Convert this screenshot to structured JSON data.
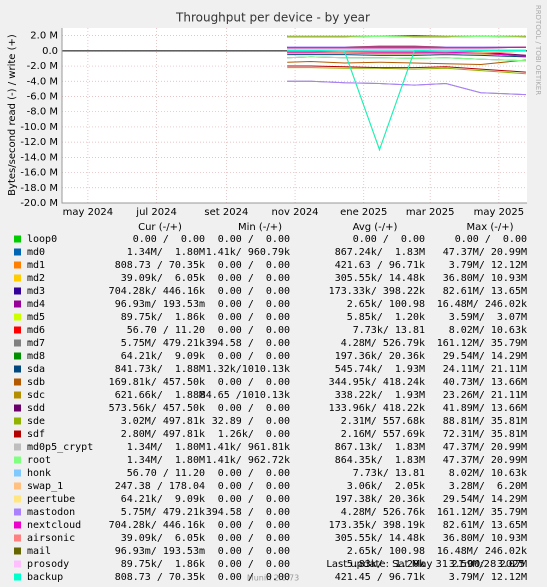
{
  "chart_data": {
    "type": "line",
    "title": "Throughput per device - by year",
    "y_label": "Bytes/second read (-) / write (+)",
    "side_note": "RRDTOOL / TOBI OETIKER",
    "footer": "Last update: Sat May 31 21:00:28 2025",
    "version": "Munin 2.0.73",
    "columns": [
      "Cur (-/+)",
      "Min (-/+)",
      "Avg (-/+)",
      "Max (-/+)"
    ],
    "ylim": [
      -20000000,
      3000000
    ],
    "yticks": [
      {
        "value": 2000000,
        "label": "2.0 M"
      },
      {
        "value": 0,
        "label": "0.0"
      },
      {
        "value": -2000000,
        "label": "-2.0 M"
      },
      {
        "value": -4000000,
        "label": "-4.0 M"
      },
      {
        "value": -6000000,
        "label": "-6.0 M"
      },
      {
        "value": -8000000,
        "label": "-8.0 M"
      },
      {
        "value": -10000000,
        "label": "-10.0 M"
      },
      {
        "value": -12000000,
        "label": "-12.0 M"
      },
      {
        "value": -14000000,
        "label": "-14.0 M"
      },
      {
        "value": -16000000,
        "label": "-16.0 M"
      },
      {
        "value": -18000000,
        "label": "-18.0 M"
      },
      {
        "value": -20000000,
        "label": "-20.0 M"
      }
    ],
    "xlim": [
      "2024-04-08",
      "2025-05-26"
    ],
    "xticks": [
      {
        "value": "2024-05-01",
        "label": "may 2024"
      },
      {
        "value": "2024-07-01",
        "label": "jul 2024"
      },
      {
        "value": "2024-09-01",
        "label": "set 2024"
      },
      {
        "value": "2024-11-01",
        "label": "nov 2024"
      },
      {
        "value": "2025-01-01",
        "label": "ene 2025"
      },
      {
        "value": "2025-03-01",
        "label": "mar 2025"
      },
      {
        "value": "2025-05-01",
        "label": "may 2025"
      }
    ],
    "grid": true,
    "x": [
      "2024-10-25",
      "2024-11-15",
      "2024-12-15",
      "2025-01-15",
      "2025-02-15",
      "2025-03-15",
      "2025-04-15",
      "2025-05-25"
    ],
    "series": [
      {
        "name": "loop0",
        "color": "#00cc00",
        "cur": "0.00 /  0.00",
        "min": "0.00 /  0.00",
        "avg": "0.00 /  0.00",
        "max": "0.00 /  0.00",
        "values": [
          0,
          0,
          0,
          0,
          0,
          0,
          0,
          0
        ],
        "read": [
          0,
          0,
          0,
          0,
          0,
          0,
          0,
          0
        ]
      },
      {
        "name": "md0",
        "color": "#0066b3",
        "cur": "1.34M/  1.80M",
        "min": "1.41k/ 960.79k",
        "avg": "867.24k/  1.83M",
        "max": "47.37M/ 20.99M",
        "values": [
          1800000,
          1800000,
          1800000,
          1900000,
          1800000,
          1800000,
          1900000,
          1800000
        ],
        "read": [
          -900000,
          -800000,
          -900000,
          -900000,
          -1000000,
          -900000,
          -1100000,
          -1300000
        ]
      },
      {
        "name": "md1",
        "color": "#ff8000",
        "cur": "808.73 / 70.35k",
        "min": "0.00 /  0.00",
        "avg": "421.63 / 96.71k",
        "max": "3.79M/ 12.12M",
        "values": [
          100000,
          100000,
          100000,
          100000,
          100000,
          100000,
          100000,
          70000
        ],
        "read": [
          0,
          0,
          -100000,
          -13000000,
          0,
          -100000,
          0,
          0
        ]
      },
      {
        "name": "md2",
        "color": "#ffcc00",
        "cur": "39.09k/  6.05k",
        "min": "0.00 /  0.00",
        "avg": "305.55k/ 14.48k",
        "max": "36.80M/ 10.93M",
        "values": [
          0,
          0,
          0,
          0,
          0,
          0,
          0,
          0
        ],
        "read": [
          -300000,
          -300000,
          -200000,
          -300000,
          -300000,
          -400000,
          -300000,
          -40000
        ]
      },
      {
        "name": "md3",
        "color": "#330099",
        "cur": "704.28k/ 446.16k",
        "min": "0.00 /  0.00",
        "avg": "173.33k/ 398.22k",
        "max": "82.61M/ 13.65M",
        "values": [
          400000,
          400000,
          400000,
          400000,
          400000,
          400000,
          400000,
          450000
        ],
        "read": [
          -200000,
          -200000,
          -100000,
          -200000,
          -200000,
          -200000,
          -300000,
          -700000
        ]
      },
      {
        "name": "md4",
        "color": "#990099",
        "cur": "96.93m/ 193.53m",
        "min": "0.00 /  0.00",
        "avg": "2.65k/ 100.98",
        "max": "16.48M/ 246.02k",
        "values": [
          0,
          0,
          0,
          0,
          0,
          0,
          0,
          0
        ],
        "read": [
          0,
          0,
          0,
          0,
          0,
          0,
          0,
          0
        ]
      },
      {
        "name": "md5",
        "color": "#ccff00",
        "cur": "89.75k/  1.86k",
        "min": "0.00 /  0.00",
        "avg": "5.85k/  1.20k",
        "max": "3.59M/  3.07M",
        "values": [
          0,
          0,
          0,
          0,
          0,
          0,
          0,
          0
        ],
        "read": [
          0,
          0,
          0,
          0,
          0,
          0,
          0,
          -90000
        ]
      },
      {
        "name": "md6",
        "color": "#ff0000",
        "cur": "56.70 / 11.20",
        "min": "0.00 /  0.00",
        "avg": "7.73k/ 13.81",
        "max": "8.02M/ 10.63k",
        "values": [
          0,
          0,
          0,
          0,
          0,
          0,
          0,
          0
        ],
        "read": [
          0,
          0,
          0,
          0,
          0,
          0,
          0,
          0
        ]
      },
      {
        "name": "md7",
        "color": "#808080",
        "cur": "5.75M/ 479.21k",
        "min": "394.58 /  0.00",
        "avg": "4.28M/ 526.79k",
        "max": "161.12M/ 35.79M",
        "values": [
          500000,
          500000,
          500000,
          500000,
          500000,
          500000,
          500000,
          480000
        ],
        "read": [
          -4000000,
          -4000000,
          -4200000,
          -4300000,
          -4500000,
          -4300000,
          -5500000,
          -5750000
        ]
      },
      {
        "name": "md8",
        "color": "#008f00",
        "cur": "64.21k/  9.09k",
        "min": "0.00 /  0.00",
        "avg": "197.36k/ 20.36k",
        "max": "29.54M/ 14.29M",
        "values": [
          0,
          0,
          0,
          0,
          0,
          0,
          0,
          0
        ],
        "read": [
          -200000,
          -200000,
          -200000,
          -200000,
          -200000,
          -200000,
          -200000,
          -60000
        ]
      },
      {
        "name": "sda",
        "color": "#00487d",
        "cur": "841.73k/  1.88M",
        "min": "1.32k/1010.13k",
        "avg": "545.74k/  1.93M",
        "max": "24.11M/ 21.11M",
        "values": [
          1900000,
          1900000,
          1900000,
          1900000,
          2000000,
          1900000,
          1900000,
          1900000
        ],
        "read": [
          -500000,
          -500000,
          -500000,
          -600000,
          -600000,
          -500000,
          -600000,
          -800000
        ]
      },
      {
        "name": "sdb",
        "color": "#b35a00",
        "cur": "169.81k/ 457.50k",
        "min": "0.00 /  0.00",
        "avg": "344.95k/ 418.24k",
        "max": "40.73M/ 13.66M",
        "values": [
          400000,
          400000,
          400000,
          400000,
          400000,
          400000,
          400000,
          460000
        ],
        "read": [
          -1500000,
          -1400000,
          -1600000,
          -1500000,
          -1600000,
          -1700000,
          -1800000,
          -1200000
        ]
      },
      {
        "name": "sdc",
        "color": "#b38f00",
        "cur": "621.66k/  1.88M",
        "min": "84.65 /1010.13k",
        "avg": "338.22k/  1.93M",
        "max": "23.26M/ 21.11M",
        "values": [
          1900000,
          1900000,
          1900000,
          1900000,
          1900000,
          1900000,
          1900000,
          1900000
        ],
        "read": [
          -300000,
          -300000,
          -300000,
          -400000,
          -400000,
          -300000,
          -400000,
          -600000
        ]
      },
      {
        "name": "sdd",
        "color": "#6b006b",
        "cur": "573.56k/ 457.50k",
        "min": "0.00 /  0.00",
        "avg": "133.96k/ 418.22k",
        "max": "41.89M/ 13.66M",
        "values": [
          400000,
          400000,
          400000,
          400000,
          400000,
          400000,
          400000,
          460000
        ],
        "read": [
          -100000,
          -100000,
          -100000,
          -200000,
          -200000,
          -100000,
          -200000,
          -570000
        ]
      },
      {
        "name": "sde",
        "color": "#8fb300",
        "cur": "3.02M/ 497.81k",
        "min": "32.89 /  0.00",
        "avg": "2.31M/ 557.68k",
        "max": "88.81M/ 35.81M",
        "values": [
          500000,
          500000,
          500000,
          600000,
          600000,
          500000,
          500000,
          500000
        ],
        "read": [
          -2200000,
          -2200000,
          -2300000,
          -2300000,
          -2400000,
          -2300000,
          -2600000,
          -3000000
        ]
      },
      {
        "name": "sdf",
        "color": "#b30000",
        "cur": "2.80M/ 497.81k",
        "min": "1.26k/  0.00",
        "avg": "2.16M/ 557.69k",
        "max": "72.31M/ 35.81M",
        "values": [
          500000,
          500000,
          500000,
          600000,
          600000,
          500000,
          500000,
          500000
        ],
        "read": [
          -2000000,
          -2000000,
          -2100000,
          -2200000,
          -2200000,
          -2100000,
          -2400000,
          -2800000
        ]
      },
      {
        "name": "md0p5_crypt",
        "color": "#bebebe",
        "cur": "1.34M/  1.80M",
        "min": "1.41k/ 961.81k",
        "avg": "867.13k/  1.83M",
        "max": "47.37M/ 20.99M",
        "values": [
          1800000,
          1800000,
          1800000,
          1900000,
          1800000,
          1800000,
          1900000,
          1800000
        ],
        "read": [
          -900000,
          -800000,
          -900000,
          -900000,
          -1000000,
          -900000,
          -1100000,
          -1300000
        ]
      },
      {
        "name": "root",
        "color": "#80ff80",
        "cur": "1.34M/  1.80M",
        "min": "1.41k/ 962.72k",
        "avg": "864.35k/  1.83M",
        "max": "47.37M/ 20.99M",
        "values": [
          1800000,
          1800000,
          1800000,
          1900000,
          1800000,
          1800000,
          1900000,
          1800000
        ],
        "read": [
          -900000,
          -800000,
          -900000,
          -900000,
          -1000000,
          -900000,
          -1100000,
          -1300000
        ]
      },
      {
        "name": "honk",
        "color": "#80c9ff",
        "cur": "56.70 / 11.20",
        "min": "0.00 /  0.00",
        "avg": "7.73k/ 13.81",
        "max": "8.02M/ 10.63k",
        "values": [
          0,
          0,
          0,
          0,
          0,
          0,
          0,
          0
        ],
        "read": [
          0,
          0,
          0,
          0,
          0,
          0,
          0,
          0
        ]
      },
      {
        "name": "swap_1",
        "color": "#ffc080",
        "cur": "247.38 / 178.04",
        "min": "0.00 /  0.00",
        "avg": "3.06k/  2.05k",
        "max": "3.28M/  6.20M",
        "values": [
          0,
          0,
          0,
          0,
          0,
          0,
          0,
          0
        ],
        "read": [
          0,
          0,
          0,
          0,
          0,
          0,
          0,
          0
        ]
      },
      {
        "name": "peertube",
        "color": "#ffe680",
        "cur": "64.21k/  9.09k",
        "min": "0.00 /  0.00",
        "avg": "197.38k/ 20.36k",
        "max": "29.54M/ 14.29M",
        "values": [
          0,
          0,
          0,
          0,
          0,
          0,
          0,
          0
        ],
        "read": [
          -200000,
          -200000,
          -200000,
          -200000,
          -200000,
          -200000,
          -200000,
          -60000
        ]
      },
      {
        "name": "mastodon",
        "color": "#aa80ff",
        "cur": "5.75M/ 479.21k",
        "min": "394.58 /  0.00",
        "avg": "4.28M/ 526.76k",
        "max": "161.12M/ 35.79M",
        "values": [
          500000,
          500000,
          500000,
          500000,
          500000,
          500000,
          500000,
          480000
        ],
        "read": [
          -4000000,
          -4000000,
          -4200000,
          -4300000,
          -4500000,
          -4300000,
          -5500000,
          -5750000
        ]
      },
      {
        "name": "nextcloud",
        "color": "#ee00cc",
        "cur": "704.28k/ 446.16k",
        "min": "0.00 /  0.00",
        "avg": "173.35k/ 398.19k",
        "max": "82.61M/ 13.65M",
        "values": [
          400000,
          400000,
          400000,
          400000,
          400000,
          400000,
          400000,
          450000
        ],
        "read": [
          -200000,
          -200000,
          -100000,
          -200000,
          -200000,
          -200000,
          -300000,
          -700000
        ]
      },
      {
        "name": "airsonic",
        "color": "#ff8080",
        "cur": "39.09k/  6.05k",
        "min": "0.00 /  0.00",
        "avg": "305.55k/ 14.48k",
        "max": "36.80M/ 10.93M",
        "values": [
          0,
          0,
          0,
          0,
          0,
          0,
          0,
          0
        ],
        "read": [
          -300000,
          -300000,
          -200000,
          -300000,
          -300000,
          -400000,
          -300000,
          -40000
        ]
      },
      {
        "name": "mail",
        "color": "#666600",
        "cur": "96.93m/ 193.53m",
        "min": "0.00 /  0.00",
        "avg": "2.65k/ 100.98",
        "max": "16.48M/ 246.02k",
        "values": [
          0,
          0,
          0,
          0,
          0,
          0,
          0,
          0
        ],
        "read": [
          0,
          0,
          0,
          0,
          0,
          0,
          0,
          0
        ]
      },
      {
        "name": "prosody",
        "color": "#ffbfff",
        "cur": "89.75k/  1.86k",
        "min": "0.00 /  0.00",
        "avg": "5.83k/  1.20k",
        "max": "3.59M/  3.07M",
        "values": [
          0,
          0,
          0,
          0,
          0,
          0,
          0,
          0
        ],
        "read": [
          0,
          0,
          0,
          0,
          0,
          0,
          0,
          -90000
        ]
      },
      {
        "name": "backup",
        "color": "#00ffcc",
        "cur": "808.73 / 70.35k",
        "min": "0.00 /  0.00",
        "avg": "421.45 / 96.71k",
        "max": "3.79M/ 12.12M",
        "values": [
          100000,
          100000,
          100000,
          100000,
          100000,
          100000,
          100000,
          70000
        ],
        "read": [
          0,
          0,
          -100000,
          -13000000,
          0,
          -100000,
          0,
          0
        ]
      }
    ]
  }
}
